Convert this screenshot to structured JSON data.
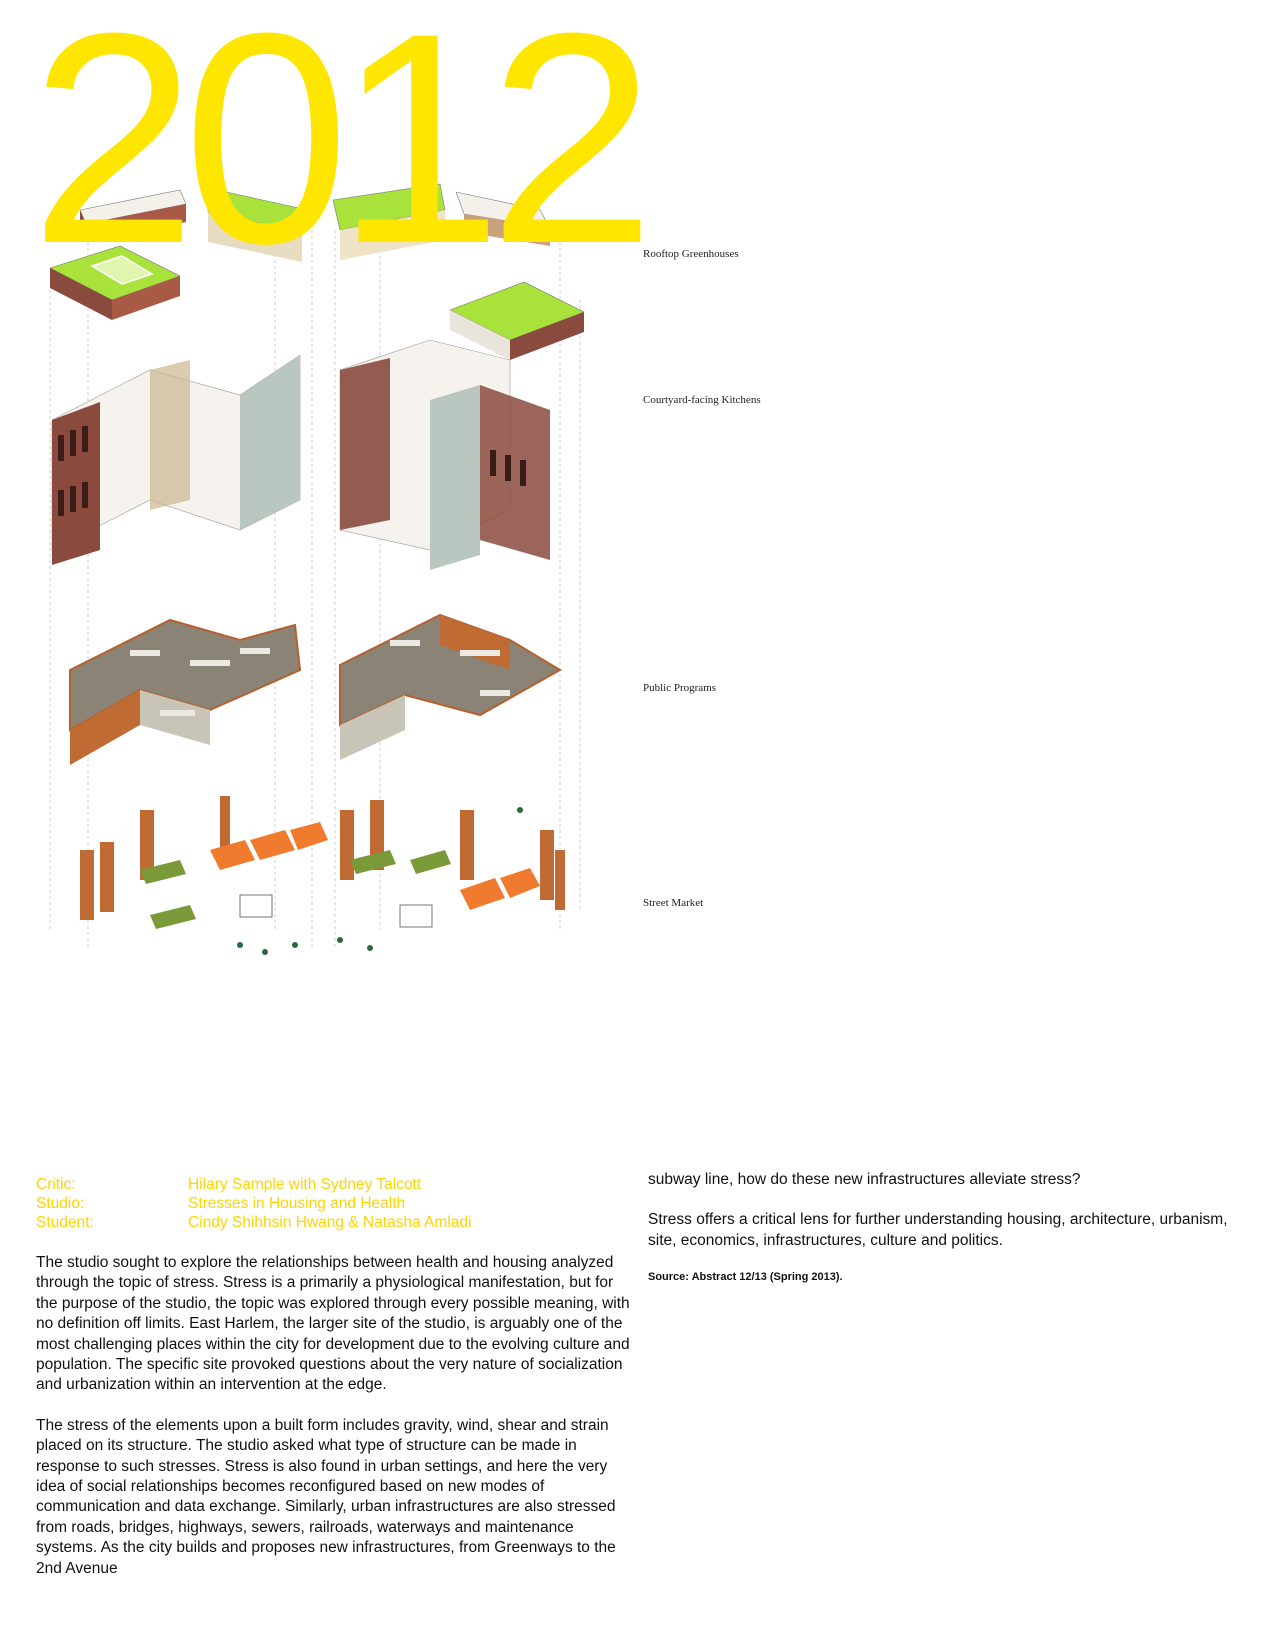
{
  "year": "2012",
  "layers": {
    "rooftop": "Rooftop Greenhouses",
    "kitchens": "Courtyard-facing Kitchens",
    "programs": "Public Programs",
    "market": "Street Market"
  },
  "meta": {
    "critic_label": "Critic:",
    "critic": "Hilary Sample with Sydney Talcott",
    "studio_label": "Studio:",
    "studio": "Stresses in Housing and Health",
    "student_label": "Student:",
    "student": "Cindy Shihhsin Hwang & Natasha Amladi"
  },
  "body": {
    "p1": "The studio sought to explore the relationships between health and housing analyzed through the topic of stress. Stress is a primarily a physiological manifestation, but for the purpose of the studio, the topic was explored through every possible meaning, with no definition off limits. East Harlem, the larger site of the studio, is arguably one of the most challenging places within the city for development due to the evolving culture and population. The specific site provoked questions about the very nature of socialization and urbanization within an intervention at the edge.",
    "p2": "The stress of the elements upon a built form includes gravity, wind, shear and strain placed on its structure. The studio asked what type of structure can be made in response to such stresses. Stress is also found in urban settings, and here the very idea of social relationships becomes reconfigured based on new modes of communication and data exchange. Similarly, urban infrastructures are also stressed from roads, bridges, highways, sewers, railroads, waterways and maintenance systems. As the city builds and proposes new infrastructures, from Greenways to the 2nd Avenue",
    "p3": "subway line, how do these new infrastructures alleviate stress?",
    "p4": "Stress offers a critical lens for further understanding housing, architecture, urbanism, site, economics, infrastructures, culture and politics.",
    "source": "Source: Abstract 12/13 (Spring 2013)."
  },
  "colors": {
    "accent": "#ffe600",
    "green": "#a8e23a",
    "brick": "#8a4a3e",
    "rust": "#c06a34",
    "orange": "#f07a2e"
  }
}
